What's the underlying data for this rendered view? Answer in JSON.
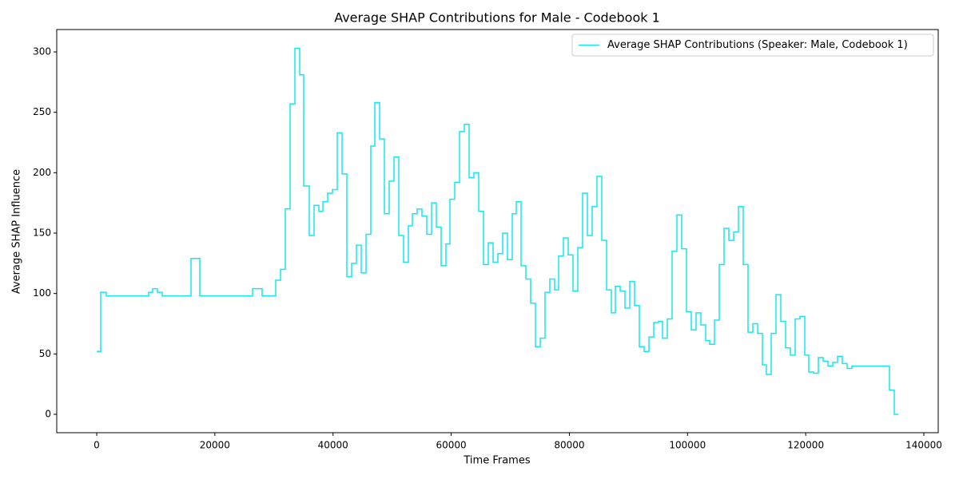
{
  "chart_data": {
    "type": "line",
    "drawstyle": "steps-post",
    "title": "Average SHAP Contributions for Male - Codebook 1",
    "xlabel": "Time Frames",
    "ylabel": "Average SHAP Influence",
    "xlim": [
      -6763,
      142430
    ],
    "ylim": [
      -15.2,
      318.5
    ],
    "xticks": [
      0,
      20000,
      40000,
      60000,
      80000,
      100000,
      120000,
      140000
    ],
    "yticks": [
      0,
      50,
      100,
      150,
      200,
      250,
      300
    ],
    "legend": "upper right",
    "x": [
      0,
      676,
      1623,
      8792,
      9468,
      10280,
      11091,
      15961,
      17449,
      26376,
      27999,
      30298,
      31110,
      31921,
      32733,
      33544,
      34356,
      35032,
      35979,
      36791,
      37602,
      38279,
      39090,
      39902,
      40713,
      41525,
      42336,
      43148,
      43959,
      44771,
      45583,
      46394,
      47070,
      47882,
      48694,
      49505,
      50317,
      51128,
      51940,
      52751,
      53428,
      54239,
      55051,
      55862,
      56674,
      57486,
      58297,
      59109,
      59785,
      60596,
      61408,
      62220,
      63031,
      63843,
      64654,
      65466,
      66277,
      67089,
      67900,
      68712,
      69524,
      70335,
      71011,
      71823,
      72635,
      73446,
      74258,
      75069,
      75881,
      76692,
      77504,
      78180,
      78992,
      79803,
      80615,
      81427,
      82238,
      83050,
      83861,
      84673,
      85484,
      86296,
      87107,
      87784,
      88595,
      89407,
      90218,
      91030,
      91842,
      92653,
      93465,
      94276,
      95088,
      95764,
      96576,
      97387,
      98199,
      99010,
      99822,
      100634,
      101445,
      102257,
      103068,
      103744,
      104556,
      105368,
      106179,
      106991,
      107802,
      108614,
      109425,
      110237,
      111049,
      111860,
      112672,
      113348,
      114159,
      114971,
      115783,
      116594,
      117406,
      118217,
      119029,
      119840,
      120517,
      121328,
      122140,
      122951,
      123763,
      124574,
      125386,
      126198,
      127009,
      127821,
      134178,
      134990,
      135667
    ],
    "series": [
      {
        "name": "Average SHAP Contributions (Speaker: Male, Codebook 1)",
        "color": "#17e6f0",
        "values": [
          52,
          101,
          98,
          101,
          104,
          101,
          98,
          129,
          98,
          104,
          98,
          111,
          120,
          170,
          257,
          303,
          281,
          189,
          148,
          173,
          168,
          176,
          183,
          186,
          233,
          199,
          114,
          125,
          140,
          117,
          149,
          222,
          258,
          228,
          166,
          193,
          213,
          148,
          126,
          156,
          166,
          170,
          164,
          149,
          175,
          155,
          123,
          141,
          178,
          192,
          234,
          240,
          196,
          200,
          168,
          124,
          142,
          126,
          133,
          150,
          128,
          166,
          176,
          123,
          112,
          92,
          56,
          63,
          101,
          112,
          103,
          131,
          146,
          132,
          102,
          138,
          183,
          148,
          172,
          197,
          144,
          103,
          84,
          106,
          102,
          88,
          110,
          90,
          56,
          52,
          64,
          76,
          77,
          63,
          79,
          135,
          165,
          137,
          85,
          70,
          84,
          74,
          61,
          58,
          78,
          124,
          154,
          144,
          151,
          172,
          124,
          68,
          75,
          67,
          41,
          33,
          67,
          99,
          77,
          55,
          49,
          79,
          81,
          49,
          35,
          34,
          47,
          44,
          40,
          43,
          48,
          42,
          38,
          40,
          20,
          0,
          0
        ]
      }
    ]
  }
}
